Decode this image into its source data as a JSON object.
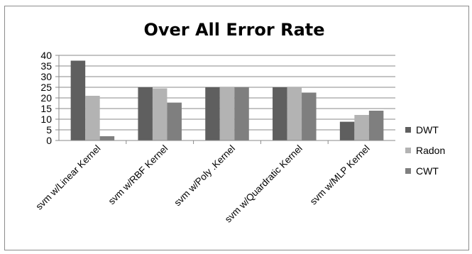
{
  "chart_data": {
    "type": "bar",
    "title": "Over All Error Rate",
    "xlabel": "",
    "ylabel": "",
    "ylim": [
      0,
      40
    ],
    "yticks": [
      0,
      5,
      10,
      15,
      20,
      25,
      30,
      35,
      40
    ],
    "grid": true,
    "legend_position": "right",
    "categories": [
      "svm w/Linear Kernel",
      "svm w/RBF Kernel",
      "svm w/Poly .Kernel",
      "svm w/Quardratic Kernel",
      "svm w/MLP Kernel"
    ],
    "series": [
      {
        "name": "DWT",
        "color": "#5f5f5f",
        "values": [
          37.5,
          25,
          25,
          25,
          8.8
        ]
      },
      {
        "name": "Radon",
        "color": "#b3b3b3",
        "values": [
          21,
          24.5,
          25,
          25,
          12
        ]
      },
      {
        "name": "CWT",
        "color": "#7f7f7f",
        "values": [
          2,
          17.8,
          25,
          22.5,
          14
        ]
      }
    ]
  }
}
